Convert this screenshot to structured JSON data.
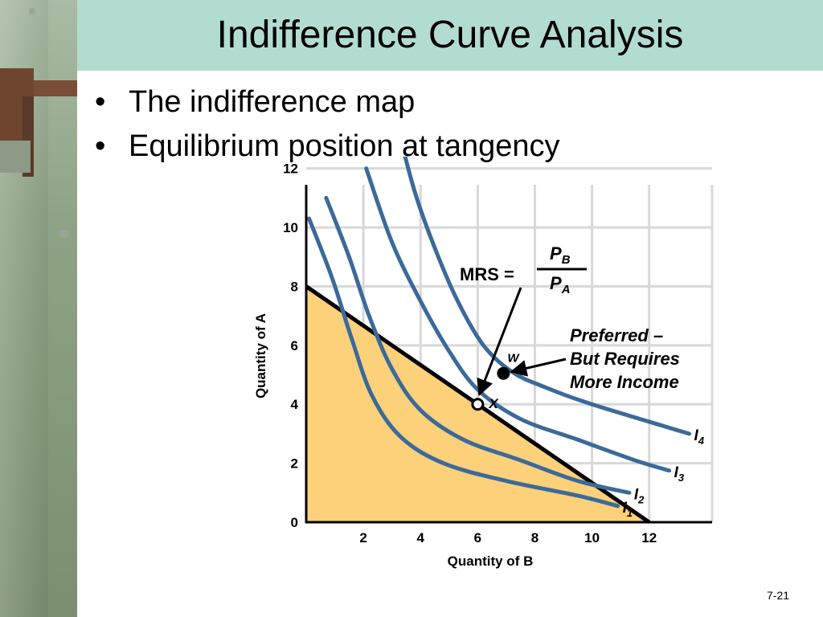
{
  "slide": {
    "title": "Indifference Curve Analysis",
    "bullets": [
      "The indifference map",
      "Equilibrium position at tangency"
    ],
    "page_number": "7-21"
  },
  "colors": {
    "title_bar": "#b3dcd0",
    "curve": "#3b6a9a",
    "budget_fill": "#fdd07a",
    "budget_line": "#000000",
    "grid": "#d8d8d8"
  },
  "chart_data": {
    "type": "line",
    "xlabel": "Quantity of B",
    "ylabel": "Quantity of A",
    "xlim": [
      0,
      14.2
    ],
    "ylim": [
      0,
      12.4
    ],
    "xticks": [
      2,
      4,
      6,
      8,
      10,
      12
    ],
    "yticks": [
      0,
      2,
      4,
      6,
      8,
      10,
      12
    ],
    "grid": true,
    "budget_line": {
      "points": [
        [
          0,
          8
        ],
        [
          12,
          0
        ]
      ]
    },
    "series": [
      {
        "name": "I1",
        "subscript": "1",
        "x": [
          0.1,
          0.9,
          1.6,
          2.3,
          3.3,
          4.8,
          7.0,
          9.5,
          10.9
        ],
        "y": [
          10.3,
          8.3,
          6.2,
          4.3,
          2.9,
          2.0,
          1.4,
          0.9,
          0.55
        ]
      },
      {
        "name": "I2",
        "subscript": "2",
        "x": [
          0.7,
          1.5,
          2.2,
          3.0,
          4.0,
          5.5,
          7.5,
          9.5,
          11.3
        ],
        "y": [
          11.0,
          9.0,
          7.0,
          5.2,
          3.8,
          2.8,
          2.1,
          1.4,
          1.0
        ]
      },
      {
        "name": "I3",
        "subscript": "3",
        "x": [
          2.1,
          3.0,
          4.0,
          5.0,
          6.0,
          7.5,
          9.5,
          11.5,
          12.7
        ],
        "y": [
          12.0,
          9.5,
          7.5,
          5.8,
          4.5,
          3.5,
          2.8,
          2.1,
          1.75
        ]
      },
      {
        "name": "I4",
        "subscript": "4",
        "x": [
          3.2,
          3.8,
          4.5,
          5.3,
          6.2,
          7.2,
          8.3,
          10.0,
          13.4
        ],
        "y": [
          13.4,
          11.2,
          9.3,
          7.5,
          6.0,
          5.1,
          4.6,
          4.0,
          3.0
        ]
      }
    ],
    "points": [
      {
        "label": "W",
        "x": 6.9,
        "y": 5.05,
        "filled": true
      },
      {
        "label": "X",
        "x": 6.0,
        "y": 4.0,
        "filled": false
      }
    ],
    "annotations": {
      "mrs_label": "MRS =",
      "mrs_num_main": "P",
      "mrs_num_sub": "B",
      "mrs_den_main": "P",
      "mrs_den_sub": "A",
      "curve_letter": "I",
      "preferred_lines": [
        "Preferred –",
        "But Requires",
        "More Income"
      ]
    }
  }
}
